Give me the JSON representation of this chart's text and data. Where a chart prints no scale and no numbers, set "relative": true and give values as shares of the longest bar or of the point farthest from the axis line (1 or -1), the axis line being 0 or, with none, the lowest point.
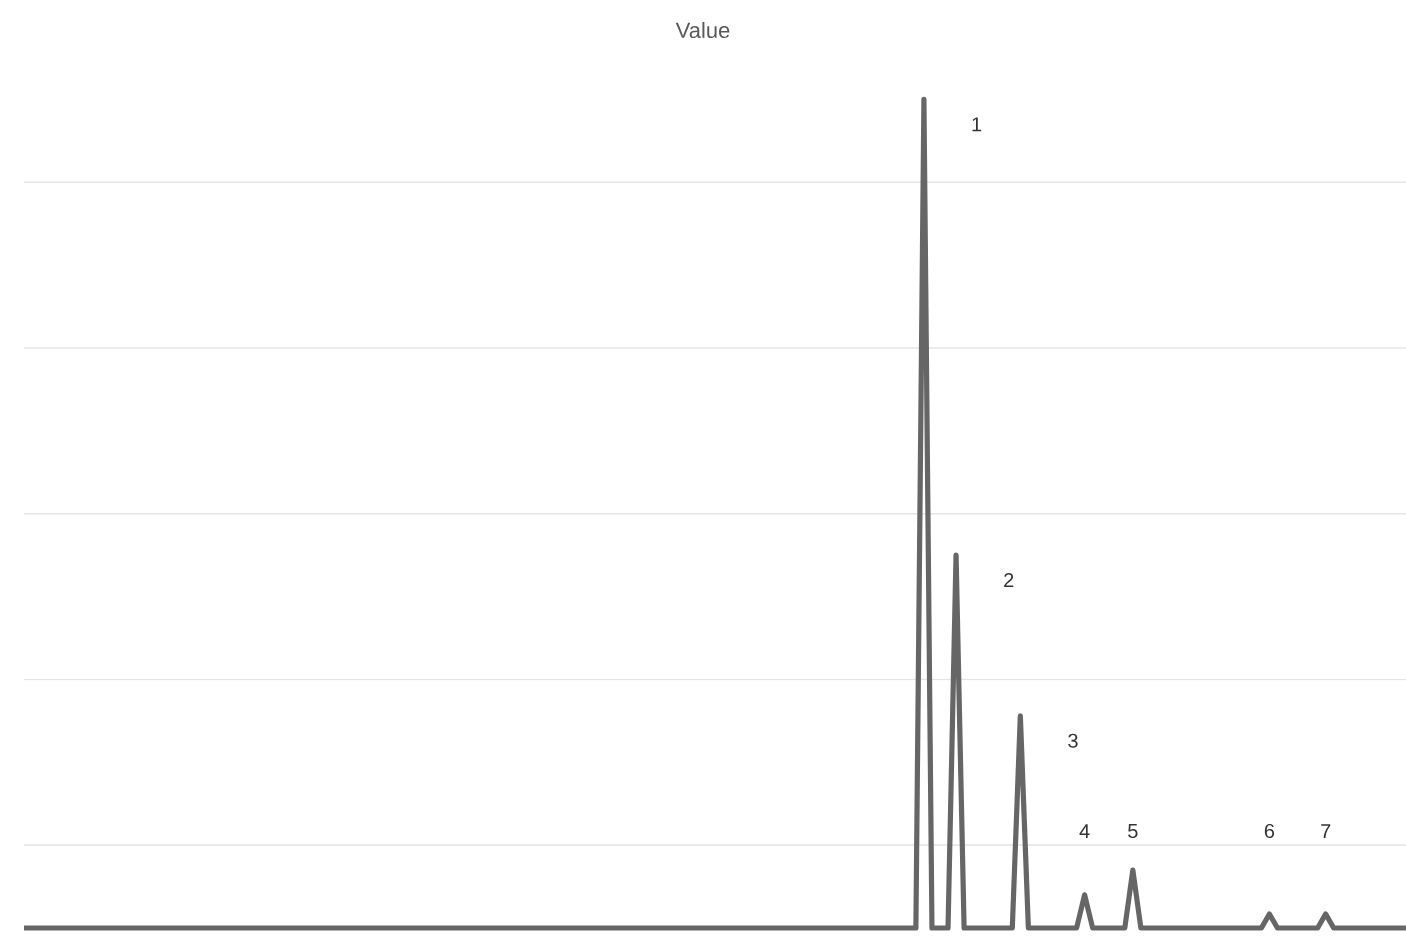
{
  "chart_data": {
    "type": "line",
    "title": "Value",
    "relative": true,
    "grid": "y",
    "color": "#666666",
    "categories": [
      null,
      null,
      null,
      null,
      null,
      null,
      null,
      null,
      null,
      null,
      null,
      null,
      null,
      null,
      null,
      null,
      null,
      null,
      null,
      null,
      null,
      null,
      null,
      null,
      null,
      null,
      null,
      null,
      null,
      null,
      null,
      null,
      null,
      null,
      null,
      null,
      null,
      null,
      null,
      null,
      null,
      null,
      null,
      null,
      null,
      null,
      null,
      null,
      null,
      null,
      null,
      null,
      null,
      null,
      null,
      null,
      null,
      null,
      null,
      null,
      null,
      null,
      null,
      null,
      null,
      null,
      null,
      null,
      null,
      null,
      null,
      null,
      null,
      null,
      null,
      null,
      null,
      null,
      null,
      null,
      null,
      null,
      null,
      null,
      null,
      null,
      null,
      null,
      null,
      null,
      null,
      null,
      null,
      null,
      null,
      null,
      null,
      null,
      null,
      null,
      null,
      null,
      null,
      null,
      null,
      null,
      null,
      null,
      null,
      null,
      null,
      null,
      null,
      null,
      null,
      null,
      null,
      null,
      null,
      null,
      null,
      null,
      null,
      null,
      null,
      null,
      null,
      null,
      null,
      null,
      null,
      null,
      null,
      null,
      null,
      null,
      null,
      null,
      null,
      null,
      null,
      null,
      null,
      null,
      null,
      null,
      null,
      null,
      null,
      null,
      null,
      null,
      null,
      null,
      null,
      null,
      null,
      null,
      null,
      null,
      null,
      null,
      null,
      null,
      null,
      null,
      null,
      null,
      null,
      null,
      null,
      null,
      null
    ],
    "values": [
      0,
      0,
      0,
      0,
      0,
      0,
      0,
      0,
      0,
      0,
      0,
      0,
      0,
      0,
      0,
      0,
      0,
      0,
      0,
      0,
      0,
      0,
      0,
      0,
      0,
      0,
      0,
      0,
      0,
      0,
      0,
      0,
      0,
      0,
      0,
      0,
      0,
      0,
      0,
      0,
      0,
      0,
      0,
      0,
      0,
      0,
      0,
      0,
      0,
      0,
      0,
      0,
      0,
      0,
      0,
      0,
      0,
      0,
      0,
      0,
      0,
      0,
      0,
      0,
      0,
      0,
      0,
      0,
      0,
      0,
      0,
      0,
      0,
      0,
      0,
      0,
      0,
      0,
      0,
      0,
      0,
      0,
      0,
      0,
      0,
      0,
      0,
      0,
      0,
      0,
      0,
      0,
      0,
      0,
      0,
      0,
      0,
      0,
      0,
      0,
      0,
      0,
      0,
      0,
      0,
      0,
      0,
      0,
      0,
      0,
      0,
      0,
      1,
      0,
      0,
      0,
      0.45,
      0,
      0,
      0,
      0,
      0,
      0,
      0,
      0.256,
      0,
      0,
      0,
      0,
      0,
      0,
      0,
      0.04,
      0,
      0,
      0,
      0,
      0,
      0.07,
      0,
      0,
      0,
      0,
      0,
      0,
      0,
      0,
      0,
      0,
      0,
      0,
      0,
      0,
      0,
      0,
      0.017,
      0,
      0,
      0,
      0,
      0,
      0,
      0.017,
      0,
      0,
      0,
      0,
      0,
      0,
      0,
      0,
      0,
      0
    ],
    "annotations": [
      "1",
      "2",
      "3",
      "4",
      "5",
      "6",
      "7"
    ]
  }
}
